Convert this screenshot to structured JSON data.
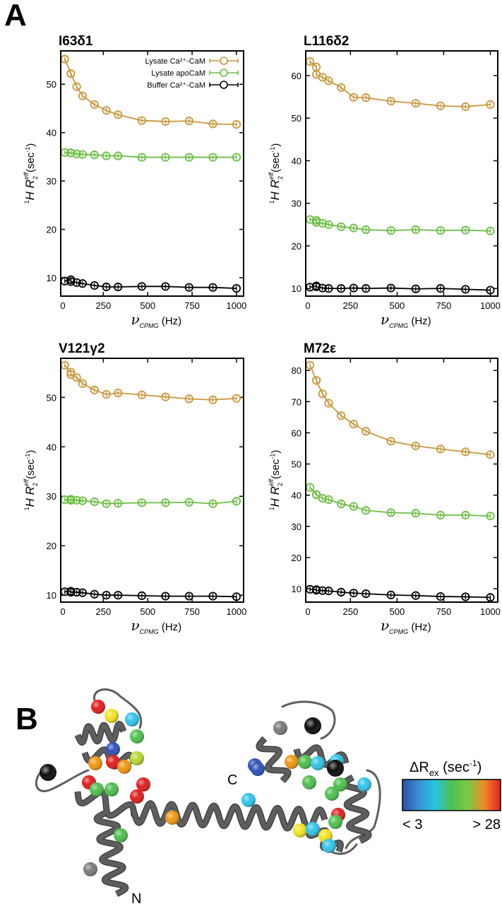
{
  "panel_a_label": "A",
  "panel_b_label": "B",
  "legend": [
    {
      "label": "Lysate Ca²⁺-CaM",
      "color": "#c9973f"
    },
    {
      "label": "Lysate apoCaM",
      "color": "#6cbd45"
    },
    {
      "label": "Buffer Ca²⁺-CaM",
      "color": "#000000"
    }
  ],
  "axis_text": {
    "x_nu": "ν",
    "x_sub": "CPMG",
    "x_unit": " (Hz)",
    "y_sup1": "1",
    "y_main": "H R",
    "y_sub": "2",
    "y_sup_eff": "eff",
    "y_unit": "(sec",
    "y_unit_sup": "-1",
    "y_close": ")"
  },
  "chart_data": [
    {
      "type": "line",
      "title": "I63δ1",
      "xlabel": "νCPMG (Hz)",
      "ylabel": "1H R2eff (sec-1)",
      "xlim": [
        10,
        1040
      ],
      "ylim": [
        6.2,
        56.9
      ],
      "xticks": [
        "0",
        "250",
        "500",
        "750",
        "1000"
      ],
      "xtick_values": [
        0,
        250,
        500,
        750,
        1000
      ],
      "yticks": [
        "10",
        "20",
        "30",
        "40",
        "50"
      ],
      "ytick_values": [
        10,
        20,
        30,
        40,
        50
      ],
      "legend": "top-right",
      "x": [
        33,
        67,
        67,
        100,
        133,
        200,
        267,
        333,
        467,
        600,
        733,
        867,
        1000
      ],
      "series": [
        {
          "name": "Lysate Ca2+-CaM",
          "values": [
            55.2,
            52.2,
            52.2,
            49.5,
            47.6,
            45.8,
            44.6,
            43.7,
            42.5,
            42.3,
            42.4,
            41.8,
            41.7
          ]
        },
        {
          "name": "Lysate apoCaM",
          "values": [
            35.9,
            35.8,
            35.8,
            35.6,
            35.5,
            35.4,
            35.2,
            35.2,
            34.9,
            34.9,
            34.9,
            34.9,
            34.9
          ]
        },
        {
          "name": "Buffer Ca2+-CaM",
          "values": [
            9.3,
            9.6,
            9.2,
            9.0,
            8.8,
            8.4,
            8.1,
            8.1,
            8.2,
            8.2,
            8.0,
            8.0,
            7.8
          ]
        }
      ]
    },
    {
      "type": "line",
      "title": "L116δ2",
      "xlabel": "νCPMG (Hz)",
      "ylabel": "1H R2eff (sec-1)",
      "xlim": [
        10,
        1040
      ],
      "ylim": [
        8.2,
        65.8
      ],
      "xticks": [
        "0",
        "250",
        "500",
        "750",
        "1000"
      ],
      "xtick_values": [
        0,
        250,
        500,
        750,
        1000
      ],
      "yticks": [
        "10",
        "20",
        "30",
        "40",
        "50",
        "60"
      ],
      "ytick_values": [
        10,
        20,
        30,
        40,
        50,
        60
      ],
      "x": [
        33,
        67,
        67,
        100,
        133,
        200,
        267,
        333,
        467,
        600,
        733,
        867,
        1000
      ],
      "series": [
        {
          "name": "Lysate Ca2+-CaM",
          "values": [
            63.3,
            62.0,
            60.3,
            59.6,
            58.8,
            57.2,
            54.9,
            54.8,
            54.0,
            53.5,
            52.9,
            52.7,
            53.2
          ]
        },
        {
          "name": "Lysate apoCaM",
          "values": [
            26.2,
            26.0,
            25.5,
            25.3,
            25.0,
            24.5,
            24.2,
            23.8,
            23.6,
            23.8,
            23.6,
            23.7,
            23.5
          ]
        },
        {
          "name": "Buffer Ca2+-CaM",
          "values": [
            10.3,
            10.6,
            10.4,
            10.1,
            10.0,
            10.0,
            10.1,
            10.0,
            10.1,
            9.9,
            10.0,
            9.8,
            9.6
          ]
        }
      ]
    },
    {
      "type": "line",
      "title": "V121γ2",
      "xlabel": "νCPMG (Hz)",
      "ylabel": "1H R2eff (sec-1)",
      "xlim": [
        10,
        1040
      ],
      "ylim": [
        8.6,
        57.9
      ],
      "xticks": [
        "0",
        "250",
        "500",
        "750",
        "1000"
      ],
      "xtick_values": [
        0,
        250,
        500,
        750,
        1000
      ],
      "yticks": [
        "10",
        "20",
        "30",
        "40",
        "50"
      ],
      "ytick_values": [
        10,
        20,
        30,
        40,
        50
      ],
      "x": [
        33,
        67,
        67,
        100,
        133,
        200,
        267,
        333,
        467,
        600,
        733,
        867,
        1000
      ],
      "series": [
        {
          "name": "Lysate Ca2+-CaM",
          "values": [
            56.5,
            55.1,
            54.6,
            54.0,
            52.8,
            51.5,
            50.6,
            50.9,
            50.5,
            50.1,
            49.7,
            49.5,
            49.8
          ]
        },
        {
          "name": "Lysate apoCaM",
          "values": [
            29.3,
            29.2,
            29.4,
            29.2,
            29.1,
            28.9,
            28.5,
            28.6,
            28.7,
            28.7,
            28.8,
            28.5,
            29.0
          ]
        },
        {
          "name": "Buffer Ca2+-CaM",
          "values": [
            10.7,
            10.8,
            10.6,
            10.6,
            10.5,
            10.2,
            10.0,
            10.0,
            9.9,
            9.8,
            9.8,
            9.8,
            9.7
          ]
        }
      ]
    },
    {
      "type": "line",
      "title": "M72ε",
      "xlabel": "νCPMG (Hz)",
      "ylabel": "1H R2eff (sec-1)",
      "xlim": [
        10,
        1040
      ],
      "ylim": [
        5.7,
        83.9
      ],
      "xticks": [
        "0",
        "250",
        "500",
        "750",
        "1000"
      ],
      "xtick_values": [
        0,
        250,
        500,
        750,
        1000
      ],
      "yticks": [
        "10",
        "20",
        "30",
        "40",
        "50",
        "60",
        "70",
        "80"
      ],
      "ytick_values": [
        10,
        20,
        30,
        40,
        50,
        60,
        70,
        80
      ],
      "x": [
        33,
        67,
        67,
        100,
        133,
        200,
        267,
        333,
        467,
        600,
        733,
        867,
        1000
      ],
      "series": [
        {
          "name": "Lysate Ca2+-CaM",
          "values": [
            81.7,
            76.8,
            76.8,
            72.5,
            69.5,
            65.5,
            62.8,
            60.5,
            57.3,
            55.8,
            54.8,
            53.9,
            53.0
          ]
        },
        {
          "name": "Lysate apoCaM",
          "values": [
            42.5,
            40.2,
            40.2,
            39.0,
            38.6,
            37.2,
            36.4,
            35.1,
            34.4,
            34.2,
            33.6,
            33.6,
            33.3
          ]
        },
        {
          "name": "Buffer Ca2+-CaM",
          "values": [
            9.8,
            9.7,
            9.5,
            9.4,
            9.3,
            8.9,
            8.6,
            8.4,
            8.0,
            7.8,
            7.5,
            7.4,
            7.2
          ]
        }
      ]
    }
  ],
  "structure": {
    "n_term_label": "N",
    "c_term_label": "C",
    "colorbar": {
      "title_main": "ΔR",
      "title_sub": "ex",
      "title_unit": " (sec",
      "title_unit_sup": "-1",
      "title_close": ")",
      "min_label": "< 3",
      "max_label": "> 28",
      "colors": [
        "#2b4ea8",
        "#3b8fd6",
        "#27c4e0",
        "#4fc04f",
        "#7ac943",
        "#f08a2a",
        "#e62020"
      ]
    },
    "sphere_colors": {
      "red": "#e01c1c",
      "orange": "#f0960f",
      "yellow": "#f2e21c",
      "yellowgreen": "#b5d92e",
      "green": "#4cbf4c",
      "cyan": "#2ec4ea",
      "blue": "#2c4fb8",
      "black": "#0a0a0a",
      "gray": "#7a7a7a"
    },
    "ribbon_color": "#5e5e5e"
  }
}
